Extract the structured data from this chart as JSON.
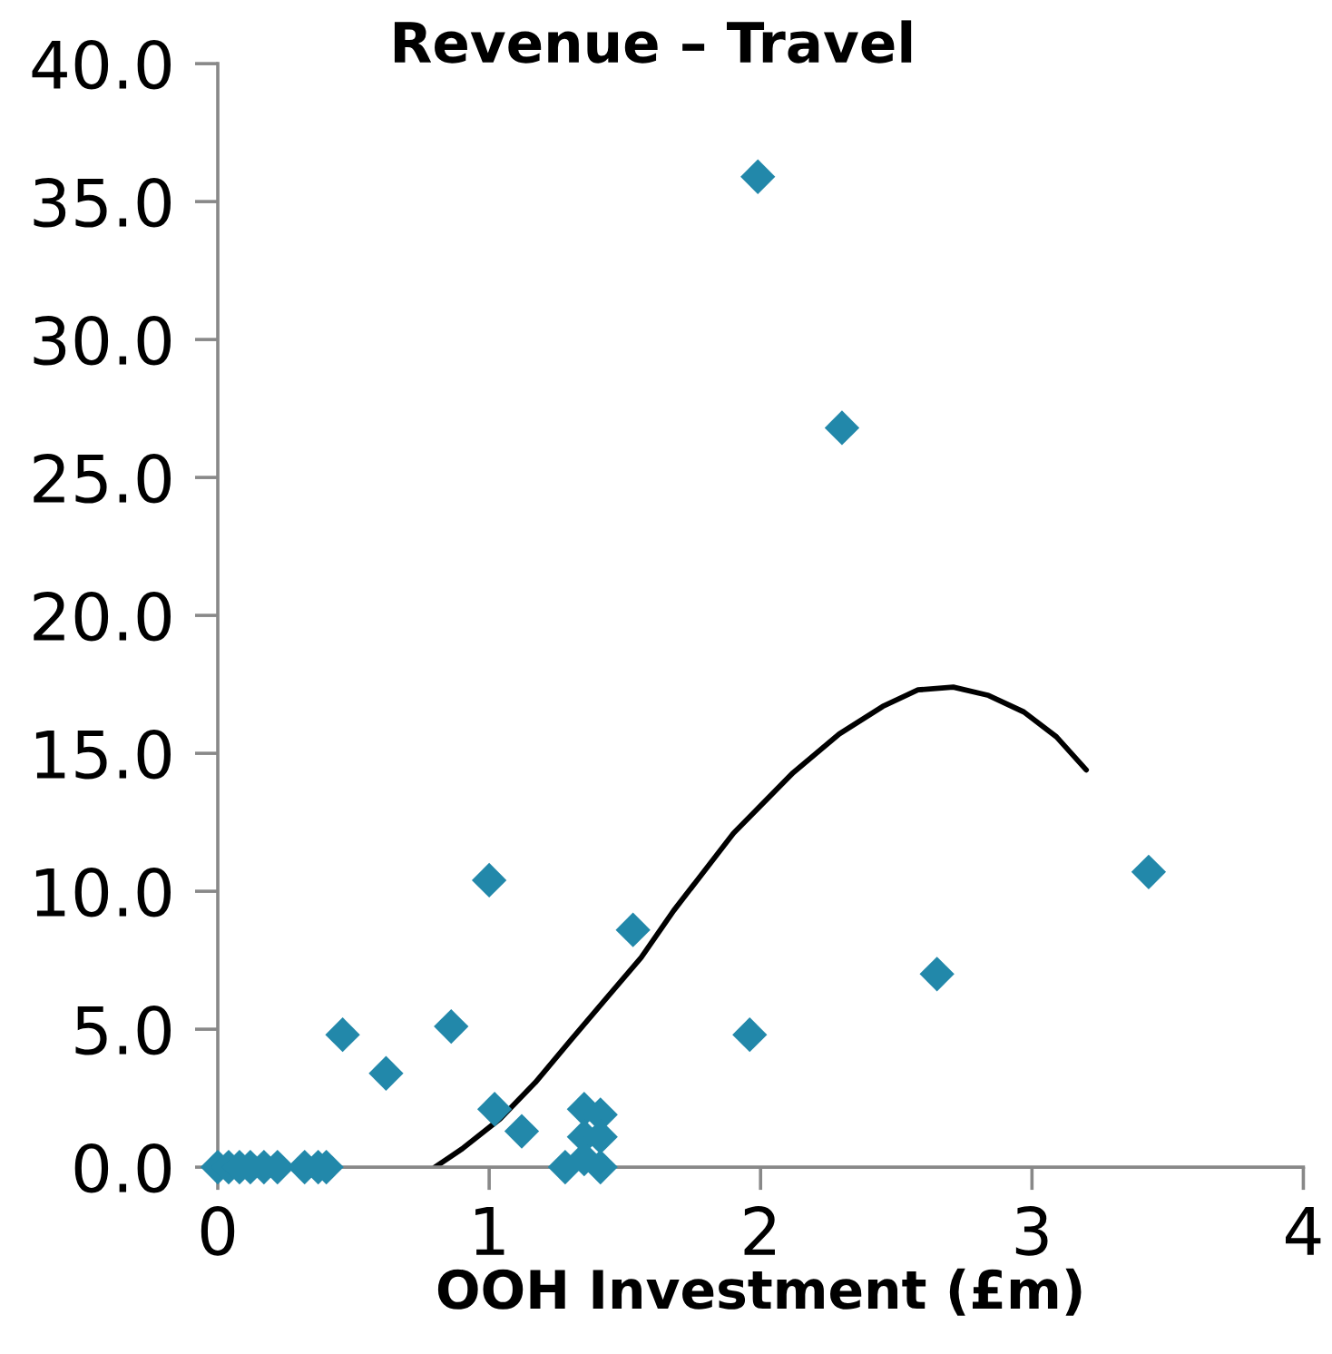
{
  "chart_data": {
    "type": "scatter",
    "title": "Revenue – Travel",
    "xlabel": "OOH Investment (£m)",
    "xlim": [
      0,
      4
    ],
    "xticks": [
      0,
      1,
      2,
      3,
      4
    ],
    "ylim": [
      0,
      40
    ],
    "yticks": [
      {
        "value": 0,
        "label": "0.0"
      },
      {
        "value": 5,
        "label": "5.0"
      },
      {
        "value": 10,
        "label": "10.0"
      },
      {
        "value": 15,
        "label": "15.0"
      },
      {
        "value": 20,
        "label": "20.0"
      },
      {
        "value": 25,
        "label": "25.0"
      },
      {
        "value": 30,
        "label": "30.0"
      },
      {
        "value": 35,
        "label": "35.0"
      },
      {
        "value": 40,
        "label": "40.0"
      }
    ],
    "grid": false,
    "marker": "diamond",
    "series": [
      {
        "color": "#2288aa",
        "x": [
          0,
          0.04,
          0.08,
          0.12,
          0.17,
          0.22,
          0.32,
          0.37,
          0.4,
          0.46,
          0.62,
          0.86,
          1.0,
          1.02,
          1.12,
          1.28,
          1.35,
          1.41,
          1.35,
          1.41,
          1.35,
          1.41,
          1.53,
          1.96,
          1.99,
          2.3,
          2.65,
          3.43
        ],
        "values": [
          0,
          0,
          0,
          0,
          0,
          0,
          0,
          0,
          0,
          4.8,
          3.4,
          5.1,
          10.4,
          2.1,
          1.3,
          0,
          2.1,
          1.9,
          1.1,
          1.1,
          0.3,
          0,
          8.6,
          4.8,
          35.9,
          26.8,
          7.0,
          10.7
        ]
      },
      {
        "type": "line",
        "color": "#000000",
        "marker": "none",
        "x": [
          0.8,
          0.9,
          1.04,
          1.17,
          1.3,
          1.43,
          1.56,
          1.68,
          1.9,
          2.12,
          2.29,
          2.45,
          2.58,
          2.71,
          2.84,
          2.97,
          3.09,
          3.2
        ],
        "values": [
          0,
          0.66,
          1.75,
          3.07,
          4.6,
          6.1,
          7.6,
          9.3,
          12.1,
          14.3,
          15.7,
          16.7,
          17.3,
          17.4,
          17.1,
          16.5,
          15.6,
          14.4
        ]
      }
    ]
  }
}
